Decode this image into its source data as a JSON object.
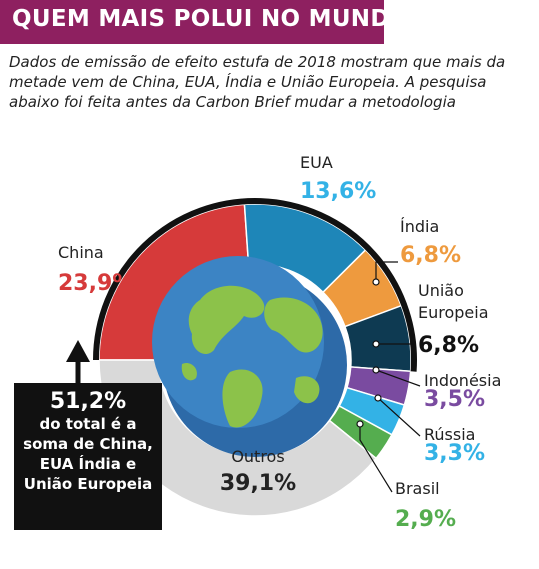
{
  "title": "QUEM MAIS POLUI NO MUNDO",
  "subtitle": "Dados de emissão de efeito estufa de 2018 mostram que mais da metade vem de China, EUA, Índia e União Europeia. A pesquisa abaixo foi feita antes da Carbon Brief mudar a metodologia",
  "callout": {
    "value": "51,2%",
    "text": "do total é a soma de China, EUA Índia e União Europeia"
  },
  "chart_data": {
    "type": "pie",
    "series": [
      {
        "name": "China",
        "value": 23.9,
        "label": "23,9%",
        "color": "#d63a3a"
      },
      {
        "name": "EUA",
        "value": 13.6,
        "label": "13,6%",
        "color": "#1e86b8"
      },
      {
        "name": "Índia",
        "value": 6.8,
        "label": "6,8%",
        "color": "#ee9a3e"
      },
      {
        "name": "União Europeia",
        "value": 6.8,
        "label": "6,8%",
        "color": "#0e3a52"
      },
      {
        "name": "Indonésia",
        "value": 3.5,
        "label": "3,5%",
        "color": "#7a4ba0"
      },
      {
        "name": "Rússia",
        "value": 3.3,
        "label": "3,3%",
        "color": "#33b2e6"
      },
      {
        "name": "Brasil",
        "value": 2.9,
        "label": "2,9%",
        "color": "#55ad4f"
      },
      {
        "name": "Outros",
        "value": 39.1,
        "label": "39,1%",
        "color": "#d9d9d9"
      }
    ]
  }
}
